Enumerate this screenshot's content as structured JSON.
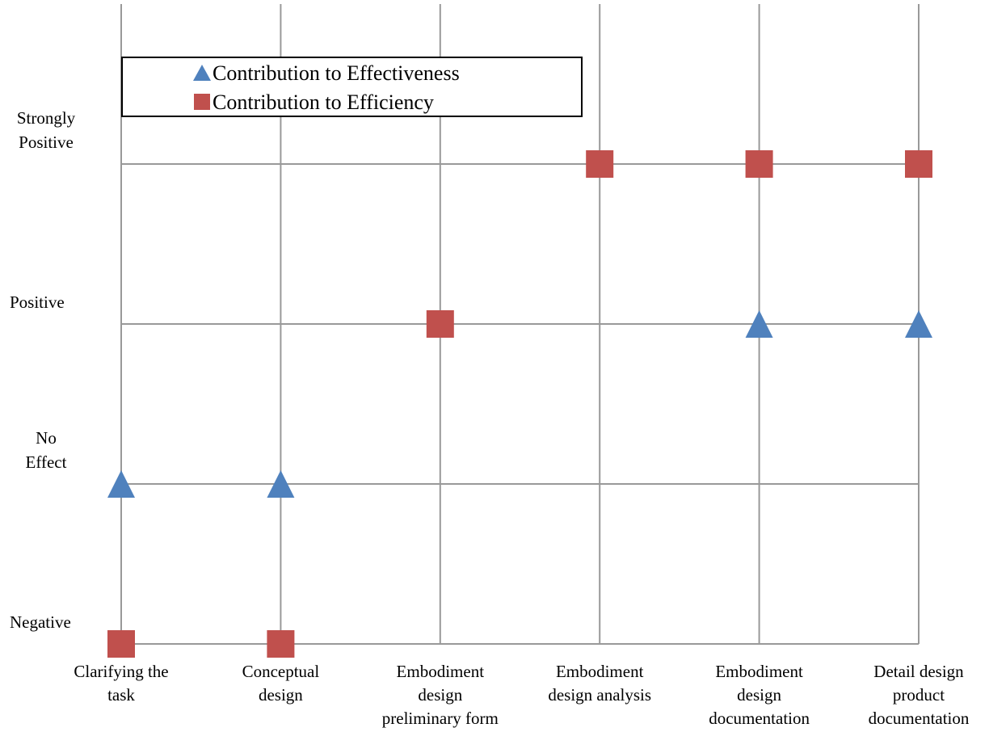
{
  "chart_data": {
    "type": "scatter",
    "title": "",
    "xlabel": "",
    "ylabel": "",
    "categories": [
      "Clarifying the task",
      "Conceptual design",
      "Embodiment design preliminary form",
      "Embodiment design analysis",
      "Embodiment design documentation",
      "Detail design product documentation"
    ],
    "x_tick_lines": [
      [
        "Clarifying the",
        "task"
      ],
      [
        "Conceptual",
        "design"
      ],
      [
        "Embodiment",
        "design",
        "preliminary form"
      ],
      [
        "Embodiment",
        "design analysis"
      ],
      [
        "Embodiment",
        "design",
        "documentation"
      ],
      [
        "Detail design",
        "product",
        "documentation"
      ]
    ],
    "y_levels": [
      "Negative",
      "No Effect",
      "Positive",
      "Strongly Positive"
    ],
    "y_tick_lines": [
      [
        "Negative"
      ],
      [
        "No",
        "Effect"
      ],
      [
        "Positive"
      ],
      [
        "Strongly",
        "Positive"
      ]
    ],
    "series": [
      {
        "name": "Contribution to Effectiveness",
        "marker": "triangle",
        "color": "#4F81BD",
        "values": [
          "No Effect",
          "No Effect",
          null,
          null,
          "Positive",
          "Positive"
        ]
      },
      {
        "name": "Contribution to Efficiency",
        "marker": "square",
        "color": "#C0504D",
        "values": [
          "Negative",
          "Negative",
          "Positive",
          "Strongly Positive",
          "Strongly Positive",
          "Strongly Positive"
        ]
      }
    ],
    "grid": true,
    "legend_position": "top-left",
    "grid_color": "#999999"
  }
}
